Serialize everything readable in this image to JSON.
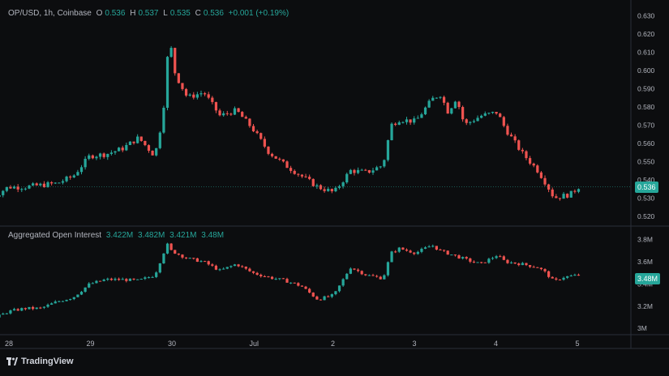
{
  "header": {
    "symbol": "OP/USD, 1h, Coinbase",
    "o_label": "O",
    "o_value": "0.536",
    "h_label": "H",
    "h_value": "0.537",
    "l_label": "L",
    "l_value": "0.535",
    "c_label": "C",
    "c_value": "0.536",
    "change": "+0.001 (+0.19%)"
  },
  "oi_header": {
    "title": "Aggregated Open Interest",
    "v1": "3.422M",
    "v2": "3.482M",
    "v3": "3.421M",
    "v4": "3.48M"
  },
  "price_badge": "0.536",
  "oi_badge": "3.48M",
  "brand": "TradingView",
  "colors": {
    "up": "#26a69a",
    "down": "#ef5350",
    "background": "#0c0d0f",
    "text": "#b2b5be",
    "grid": "#1e2127"
  },
  "chart_data": [
    {
      "type": "candlestick",
      "title": "",
      "ylim": [
        0.515,
        0.635
      ],
      "yticks": [
        "0.630",
        "0.620",
        "0.610",
        "0.600",
        "0.590",
        "0.580",
        "0.570",
        "0.560",
        "0.550",
        "0.540",
        "0.530",
        "0.520"
      ],
      "x_labels": [
        {
          "label": "28",
          "at": 0.0
        },
        {
          "label": "29",
          "at": 1.0
        },
        {
          "label": "30",
          "at": 2.0
        },
        {
          "label": "Jul",
          "at": 3.0
        },
        {
          "label": "2",
          "at": 4.0
        },
        {
          "label": "3",
          "at": 5.0
        },
        {
          "label": "4",
          "at": 6.0
        },
        {
          "label": "5",
          "at": 7.0
        }
      ],
      "x_range": [
        -0.2,
        7.4
      ],
      "series_close": [
        [
          -0.2,
          0.53
        ],
        [
          0.0,
          0.536
        ],
        [
          0.2,
          0.536
        ],
        [
          0.4,
          0.537
        ],
        [
          0.6,
          0.538
        ],
        [
          0.8,
          0.542
        ],
        [
          1.0,
          0.553
        ],
        [
          1.2,
          0.554
        ],
        [
          1.4,
          0.557
        ],
        [
          1.6,
          0.563
        ],
        [
          1.8,
          0.553
        ],
        [
          1.9,
          0.575
        ],
        [
          1.95,
          0.606
        ],
        [
          2.0,
          0.612
        ],
        [
          2.05,
          0.598
        ],
        [
          2.2,
          0.585
        ],
        [
          2.4,
          0.588
        ],
        [
          2.6,
          0.575
        ],
        [
          2.8,
          0.578
        ],
        [
          3.0,
          0.568
        ],
        [
          3.2,
          0.555
        ],
        [
          3.4,
          0.548
        ],
        [
          3.6,
          0.542
        ],
        [
          3.8,
          0.536
        ],
        [
          4.0,
          0.533
        ],
        [
          4.2,
          0.545
        ],
        [
          4.4,
          0.544
        ],
        [
          4.6,
          0.548
        ],
        [
          4.7,
          0.57
        ],
        [
          4.8,
          0.573
        ],
        [
          5.0,
          0.572
        ],
        [
          5.2,
          0.584
        ],
        [
          5.3,
          0.587
        ],
        [
          5.4,
          0.577
        ],
        [
          5.5,
          0.585
        ],
        [
          5.6,
          0.57
        ],
        [
          5.8,
          0.575
        ],
        [
          6.0,
          0.577
        ],
        [
          6.1,
          0.568
        ],
        [
          6.3,
          0.555
        ],
        [
          6.5,
          0.545
        ],
        [
          6.6,
          0.538
        ],
        [
          6.7,
          0.53
        ],
        [
          6.9,
          0.532
        ],
        [
          7.0,
          0.536
        ]
      ],
      "current_price": 0.536
    },
    {
      "type": "candlestick",
      "title": "Aggregated Open Interest",
      "ylim": [
        2.95,
        3.9
      ],
      "yticks": [
        "3.8M",
        "3.6M",
        "3.4M",
        "3.2M",
        "3M"
      ],
      "ytick_values": [
        3.8,
        3.6,
        3.4,
        3.2,
        3.0
      ],
      "series_close": [
        [
          -0.2,
          3.08
        ],
        [
          0.0,
          3.15
        ],
        [
          0.2,
          3.18
        ],
        [
          0.4,
          3.18
        ],
        [
          0.6,
          3.24
        ],
        [
          0.8,
          3.28
        ],
        [
          1.0,
          3.4
        ],
        [
          1.2,
          3.44
        ],
        [
          1.4,
          3.44
        ],
        [
          1.6,
          3.43
        ],
        [
          1.8,
          3.48
        ],
        [
          1.95,
          3.76
        ],
        [
          2.0,
          3.7
        ],
        [
          2.2,
          3.63
        ],
        [
          2.4,
          3.6
        ],
        [
          2.6,
          3.52
        ],
        [
          2.8,
          3.58
        ],
        [
          3.0,
          3.5
        ],
        [
          3.2,
          3.46
        ],
        [
          3.4,
          3.43
        ],
        [
          3.6,
          3.38
        ],
        [
          3.8,
          3.26
        ],
        [
          4.0,
          3.3
        ],
        [
          4.2,
          3.55
        ],
        [
          4.4,
          3.48
        ],
        [
          4.6,
          3.45
        ],
        [
          4.7,
          3.68
        ],
        [
          4.8,
          3.72
        ],
        [
          5.0,
          3.68
        ],
        [
          5.2,
          3.75
        ],
        [
          5.3,
          3.7
        ],
        [
          5.5,
          3.65
        ],
        [
          5.7,
          3.6
        ],
        [
          5.8,
          3.58
        ],
        [
          6.0,
          3.66
        ],
        [
          6.1,
          3.6
        ],
        [
          6.3,
          3.58
        ],
        [
          6.5,
          3.55
        ],
        [
          6.6,
          3.5
        ],
        [
          6.7,
          3.42
        ],
        [
          6.8,
          3.46
        ],
        [
          7.0,
          3.48
        ]
      ],
      "current_value": 3.48
    }
  ]
}
